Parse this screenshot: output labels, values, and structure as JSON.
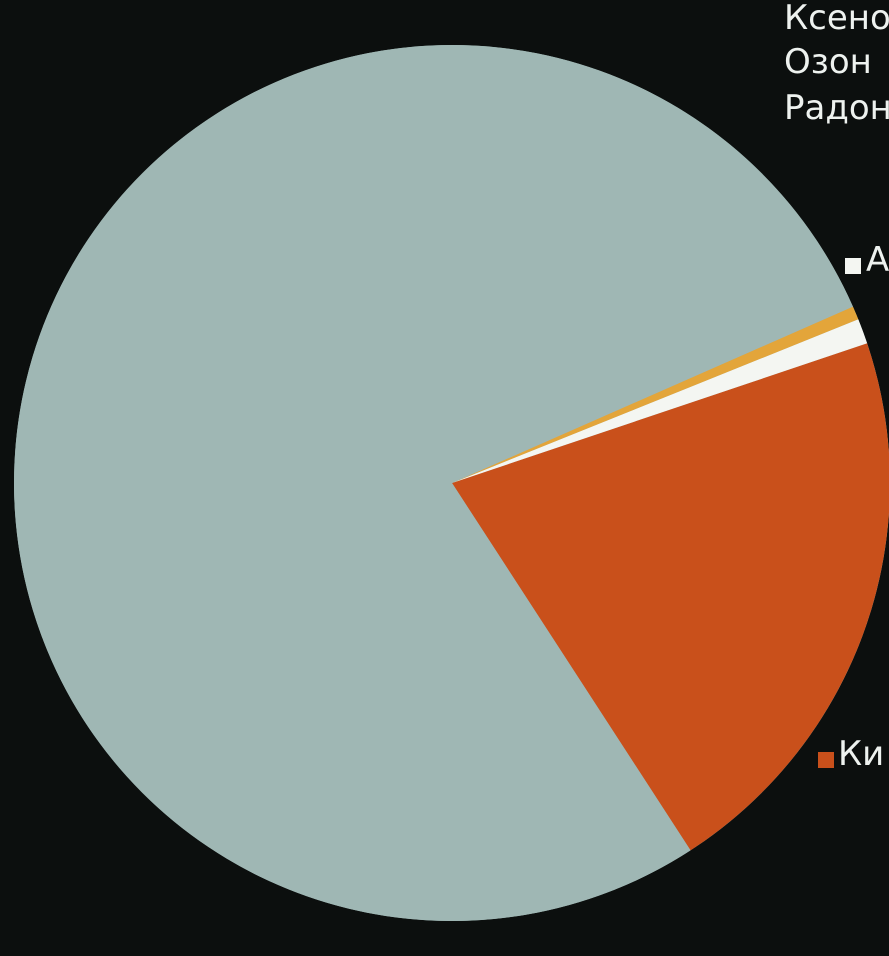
{
  "chart_data": {
    "type": "pie",
    "slices": [
      {
        "label": "Кисл",
        "value": 21.0,
        "color": "#c9501b"
      },
      {
        "label": "А",
        "value": 0.93,
        "color": "#f4f6f2"
      },
      {
        "label": "",
        "value": 0.5,
        "color": "#e3a53a"
      },
      {
        "label": "",
        "value": 77.57,
        "color": "#9fb7b4"
      }
    ],
    "legend_top": [
      "Ксено",
      "Озон",
      "Радон"
    ],
    "legend_right": [
      {
        "label": "А",
        "color": "#f4f6f2"
      },
      {
        "label": "Ки",
        "color": "#c9501b"
      }
    ]
  }
}
